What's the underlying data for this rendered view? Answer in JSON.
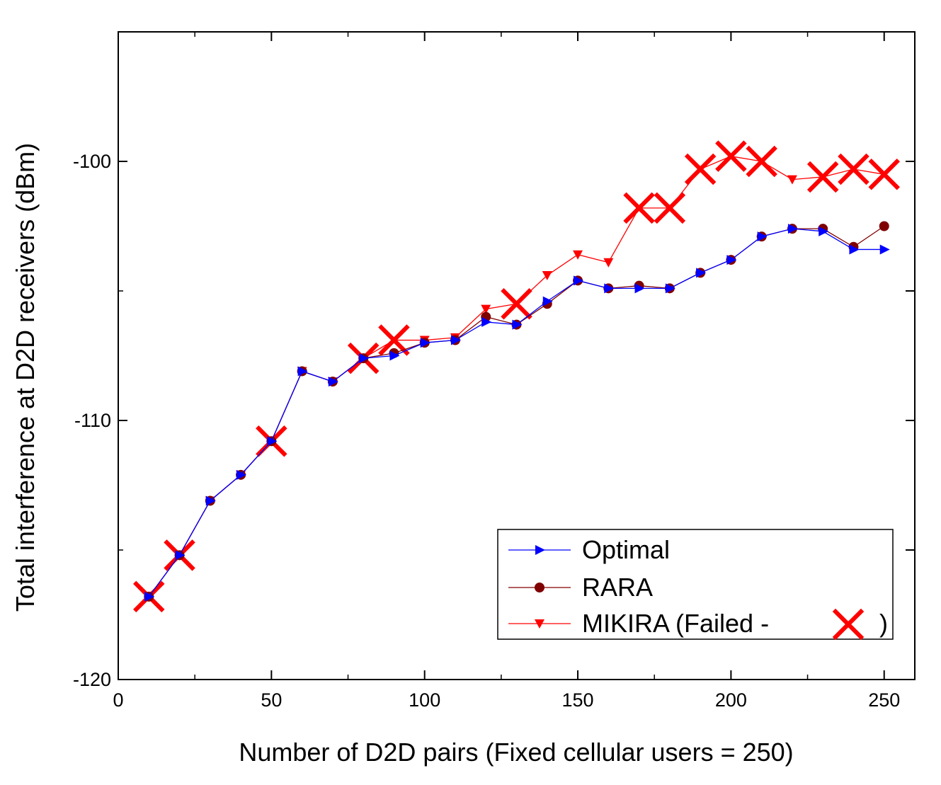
{
  "chart_data": {
    "type": "line",
    "xlabel": "Number of D2D pairs (Fixed cellular users = 250)",
    "ylabel": "Total interference at D2D receivers (dBm)",
    "xlim": [
      0,
      260
    ],
    "ylim": [
      -120,
      -95
    ],
    "xticks": [
      0,
      50,
      100,
      150,
      200,
      250
    ],
    "yticks": [
      -120,
      -110,
      -100
    ],
    "grid": false,
    "legend_position": "bottom-right",
    "x": [
      10,
      20,
      30,
      40,
      50,
      60,
      70,
      80,
      90,
      100,
      110,
      120,
      130,
      140,
      150,
      160,
      170,
      180,
      190,
      200,
      210,
      220,
      230,
      240,
      250
    ],
    "series": [
      {
        "name": "Optimal",
        "color": "#0000ff",
        "marker": "triangle-right",
        "values": [
          -116.8,
          -115.2,
          -113.1,
          -112.1,
          -110.8,
          -108.1,
          -108.5,
          -107.6,
          -107.5,
          -107.0,
          -106.9,
          -106.2,
          -106.3,
          -105.4,
          -104.6,
          -104.9,
          -104.9,
          -104.9,
          -104.3,
          -103.8,
          -102.9,
          -102.6,
          -102.7,
          -103.4,
          -103.4
        ]
      },
      {
        "name": "RARA",
        "color": "#800000",
        "marker": "circle",
        "values": [
          -116.8,
          -115.2,
          -113.1,
          -112.1,
          -110.8,
          -108.1,
          -108.5,
          -107.6,
          -107.4,
          -107.0,
          -106.9,
          -106.0,
          -106.3,
          -105.5,
          -104.6,
          -104.9,
          -104.8,
          -104.9,
          -104.3,
          -103.8,
          -102.9,
          -102.6,
          -102.6,
          -103.3,
          -102.5
        ]
      },
      {
        "name": "MIKIRA (Failed - ",
        "name_suffix": ")",
        "color": "#ff0000",
        "marker": "triangle-down",
        "failed_marker": "x",
        "values": [
          -116.8,
          -115.2,
          -113.1,
          -112.1,
          -110.8,
          -108.1,
          -108.5,
          -107.6,
          -106.9,
          -106.9,
          -106.8,
          -105.7,
          -105.5,
          -104.4,
          -103.6,
          -103.9,
          -101.8,
          -101.8,
          -100.3,
          -99.8,
          -100.0,
          -100.7,
          -100.6,
          -100.3,
          -100.5
        ],
        "failed": [
          true,
          true,
          false,
          false,
          true,
          false,
          false,
          true,
          true,
          false,
          false,
          false,
          true,
          false,
          false,
          false,
          true,
          true,
          true,
          true,
          true,
          false,
          true,
          true,
          true
        ]
      }
    ]
  }
}
